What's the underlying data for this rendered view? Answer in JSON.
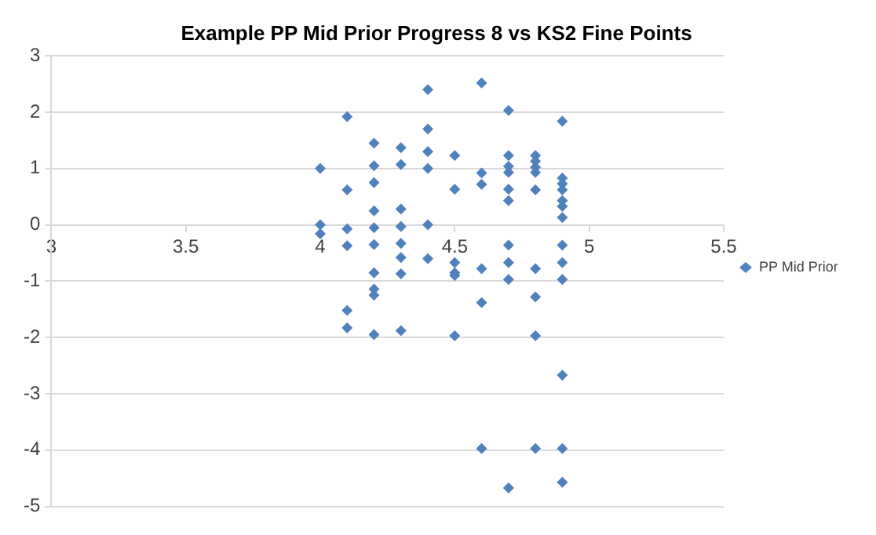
{
  "chart_data": {
    "type": "scatter",
    "title": "Example PP Mid Prior Progress 8 vs KS2 Fine Points",
    "xlim": [
      3,
      5.5
    ],
    "xticks": [
      3,
      3.5,
      4,
      4.5,
      5,
      5.5
    ],
    "ylim": [
      -5,
      3
    ],
    "yticks": [
      -5,
      -4,
      -3,
      -2,
      -1,
      0,
      1,
      2,
      3
    ],
    "grid": "y",
    "legend": "right",
    "marker": "diamond",
    "series": [
      {
        "name": "PP Mid Prior",
        "color": "#4f81bd",
        "x": [
          4,
          4,
          4,
          4.1,
          4.1,
          4.1,
          4.1,
          4.1,
          4.1,
          4.2,
          4.2,
          4.2,
          4.2,
          4.2,
          4.2,
          4.2,
          4.2,
          4.2,
          4.2,
          4.3,
          4.3,
          4.3,
          4.3,
          4.3,
          4.3,
          4.3,
          4.3,
          4.4,
          4.4,
          4.4,
          4.4,
          4.4,
          4.4,
          4.5,
          4.5,
          4.5,
          4.5,
          4.5,
          4.5,
          4.6,
          4.6,
          4.6,
          4.6,
          4.6,
          4.6,
          4.7,
          4.7,
          4.7,
          4.7,
          4.7,
          4.7,
          4.7,
          4.7,
          4.7,
          4.7,
          4.8,
          4.8,
          4.8,
          4.8,
          4.8,
          4.8,
          4.8,
          4.8,
          4.8,
          4.9,
          4.9,
          4.9,
          4.9,
          4.9,
          4.9,
          4.9,
          4.9,
          4.9,
          4.9,
          4.9,
          4.9,
          4.9
        ],
        "values": [
          1.0,
          0,
          -0.16,
          1.92,
          0.62,
          -0.07,
          -0.37,
          -1.52,
          -1.83,
          1.45,
          1.05,
          0.75,
          0.25,
          -0.05,
          -0.35,
          -0.85,
          -1.14,
          -1.25,
          -1.95,
          1.37,
          1.07,
          0.28,
          -0.03,
          -0.33,
          -0.58,
          -0.87,
          -1.88,
          2.4,
          1.7,
          1.3,
          1.0,
          0,
          -0.6,
          1.23,
          0.63,
          -0.67,
          -0.85,
          -0.9,
          -1.97,
          2.52,
          0.92,
          0.72,
          -0.78,
          -1.38,
          -3.97,
          2.03,
          1.23,
          1.04,
          0.93,
          0.63,
          0.43,
          -0.36,
          -0.67,
          -0.97,
          -4.67,
          1.23,
          1.13,
          1.02,
          0.93,
          0.62,
          -0.78,
          -1.28,
          -1.97,
          -3.97,
          1.84,
          0.83,
          0.73,
          0.62,
          0.43,
          0.33,
          0.13,
          -0.36,
          -0.67,
          -0.97,
          -2.67,
          -3.97,
          -4.57
        ]
      }
    ]
  }
}
